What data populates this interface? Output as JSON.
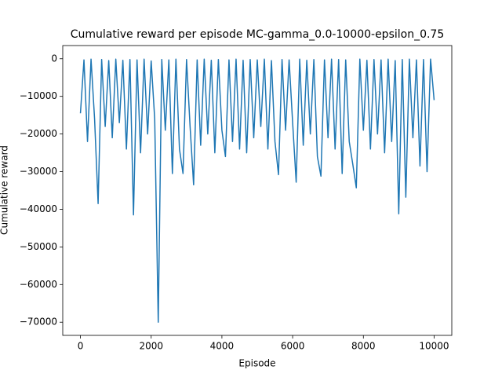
{
  "chart_data": {
    "type": "line",
    "title": "Cumulative reward per episode MC-gamma_0.0-10000-epsilon_0.75",
    "x_label": "Episode",
    "y_label": "Cumulative reward",
    "color": "#1f77b4",
    "x": [
      0,
      100,
      200,
      300,
      400,
      500,
      600,
      700,
      800,
      900,
      1000,
      1100,
      1200,
      1300,
      1400,
      1500,
      1600,
      1700,
      1800,
      1900,
      2000,
      2100,
      2200,
      2300,
      2400,
      2500,
      2600,
      2700,
      2800,
      2900,
      3000,
      3100,
      3200,
      3300,
      3400,
      3500,
      3600,
      3700,
      3800,
      3900,
      4000,
      4100,
      4200,
      4300,
      4400,
      4500,
      4600,
      4700,
      4800,
      4900,
      5000,
      5100,
      5200,
      5300,
      5400,
      5500,
      5600,
      5700,
      5800,
      5900,
      6000,
      6100,
      6200,
      6300,
      6400,
      6500,
      6600,
      6700,
      6800,
      6900,
      7000,
      7100,
      7200,
      7300,
      7400,
      7500,
      7600,
      7700,
      7800,
      7900,
      8000,
      8100,
      8200,
      8300,
      8400,
      8500,
      8600,
      8700,
      8800,
      8900,
      9000,
      9100,
      9200,
      9300,
      9400,
      9500,
      9600,
      9700,
      9800,
      9900,
      10000
    ],
    "values": [
      -14500,
      -300,
      -22000,
      -100,
      -16000,
      -38500,
      -200,
      -18000,
      -500,
      -21000,
      -100,
      -17000,
      -400,
      -24000,
      -200,
      -41500,
      -300,
      -25000,
      -100,
      -20000,
      -600,
      -16000,
      -70000,
      -200,
      -19000,
      -300,
      -30500,
      -100,
      -24000,
      -30500,
      -200,
      -18000,
      -33500,
      -300,
      -23000,
      -100,
      -20000,
      -400,
      -25000,
      -200,
      -19000,
      -26000,
      -300,
      -22000,
      -100,
      -24000,
      -400,
      -25000,
      -200,
      -21000,
      -300,
      -18000,
      -100,
      -24000,
      -500,
      -22000,
      -30800,
      -200,
      -19000,
      -300,
      -17000,
      -32800,
      -100,
      -23000,
      -400,
      -20000,
      -200,
      -26000,
      -31200,
      -300,
      -21000,
      -100,
      -24000,
      -200,
      -30500,
      -300,
      -22000,
      -28000,
      -34300,
      -100,
      -19000,
      -400,
      -24000,
      -200,
      -20000,
      -300,
      -25000,
      -100,
      -22000,
      -500,
      -41200,
      -200,
      -36800,
      -100,
      -21000,
      -300,
      -28500,
      -200,
      -30000,
      -100,
      -11000
    ],
    "xlim": [
      -500,
      10500
    ],
    "ylim": [
      -73500,
      3500
    ],
    "xticks": [
      0,
      2000,
      4000,
      6000,
      8000,
      10000
    ],
    "yticks": [
      {
        "value": -70000,
        "label": "−70000"
      },
      {
        "value": -60000,
        "label": "−60000"
      },
      {
        "value": -50000,
        "label": "−50000"
      },
      {
        "value": -40000,
        "label": "−40000"
      },
      {
        "value": -30000,
        "label": "−30000"
      },
      {
        "value": -20000,
        "label": "−20000"
      },
      {
        "value": -10000,
        "label": "−10000"
      },
      0
    ]
  }
}
